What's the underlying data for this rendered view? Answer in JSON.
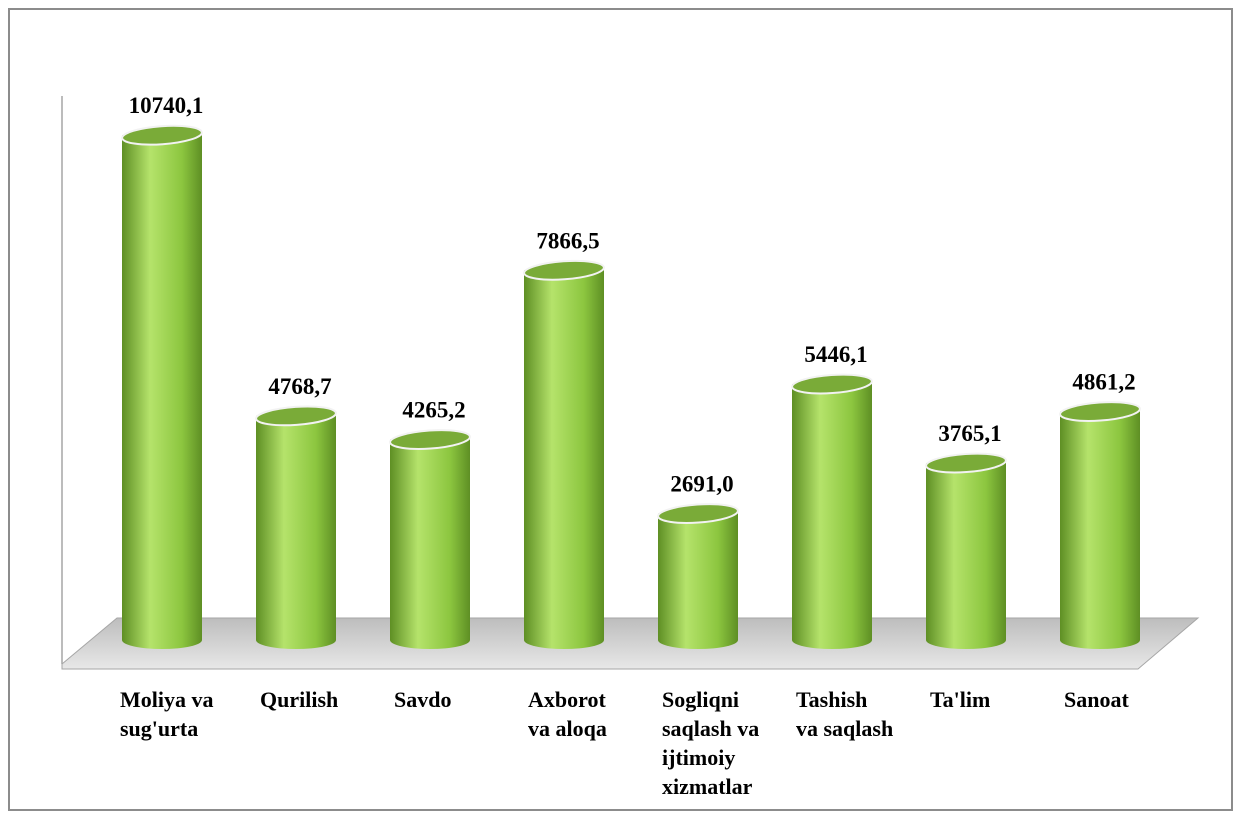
{
  "chart_data": {
    "type": "bar",
    "style": "3d-cylinder",
    "categories": [
      [
        "Moliya va",
        "sug'urta"
      ],
      [
        "Qurilish"
      ],
      [
        "Savdo"
      ],
      [
        "Axborot",
        "va aloqa"
      ],
      [
        "Sogliqni",
        "saqlash va",
        "ijtimoiy",
        "xizmatlar"
      ],
      [
        "Tashish",
        "va saqlash"
      ],
      [
        "Ta'lim"
      ],
      [
        "Sanoat"
      ]
    ],
    "values": [
      10740.1,
      4768.7,
      4265.2,
      7866.5,
      2691.0,
      5446.1,
      3765.1,
      4861.2
    ],
    "value_labels": [
      "10740,1",
      "4768,7",
      "4265,2",
      "7866,5",
      "2691,0",
      "5446,1",
      "3765,1",
      "4861,2"
    ],
    "title": "",
    "xlabel": "",
    "ylabel": "",
    "grid": false,
    "legend": "none",
    "colors": {
      "bar_body": "#8cc63f",
      "bar_highlight": "#b5e36b",
      "bar_shadow": "#5e8f24",
      "bar_top": "#7aab38",
      "floor": "#d9d9d9",
      "frame": "#8c8c8c"
    }
  }
}
